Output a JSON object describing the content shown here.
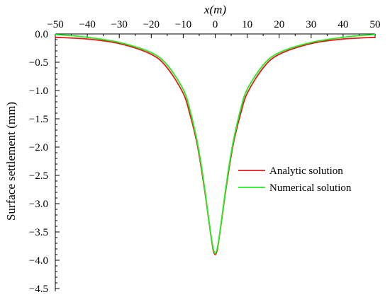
{
  "chart_data": {
    "type": "line",
    "xlabel": "x(m)",
    "ylabel": "Surface settlement (mm)",
    "xlim": [
      -50,
      50
    ],
    "ylim": [
      -4.5,
      0
    ],
    "x_ticks": [
      -50,
      -40,
      -30,
      -20,
      -10,
      0,
      10,
      20,
      30,
      40,
      50
    ],
    "x_tick_labels": [
      "−50",
      "−40",
      "−30",
      "−20",
      "−10",
      "0",
      "10",
      "20",
      "30",
      "40",
      "50"
    ],
    "y_ticks": [
      0,
      -0.5,
      -1,
      -1.5,
      -2,
      -2.5,
      -3,
      -3.5,
      -4,
      -4.5
    ],
    "y_tick_labels": [
      "0.0",
      "−0.5",
      "−1.0",
      "−1.5",
      "−2.0",
      "−2.5",
      "−3.0",
      "−3.5",
      "−4.0",
      "−4.5"
    ],
    "x_axis_position": "top",
    "grid": false,
    "legend_position": "center-right",
    "series": [
      {
        "name": "Analytic  solution",
        "color": "#e31a1c",
        "x": [
          -50,
          -40,
          -30,
          -20,
          -15,
          -10,
          -8,
          -6,
          -5,
          -4,
          -3,
          -2,
          -1,
          -0.5,
          0,
          0.5,
          1,
          2,
          3,
          4,
          5,
          6,
          8,
          10,
          15,
          20,
          30,
          40,
          50
        ],
        "y": [
          -0.06,
          -0.09,
          -0.17,
          -0.36,
          -0.6,
          -1.05,
          -1.4,
          -1.85,
          -2.15,
          -2.5,
          -2.88,
          -3.3,
          -3.7,
          -3.85,
          -3.9,
          -3.85,
          -3.7,
          -3.3,
          -2.88,
          -2.5,
          -2.15,
          -1.85,
          -1.4,
          -1.05,
          -0.6,
          -0.36,
          -0.17,
          -0.09,
          -0.06
        ]
      },
      {
        "name": "Numerical solution",
        "color": "#22ee22",
        "x": [
          -50,
          -45,
          -40,
          -30,
          -20,
          -15,
          -10,
          -8,
          -6,
          -5,
          -4,
          -3,
          -2,
          -1,
          -0.5,
          0,
          0.5,
          1,
          2,
          3,
          4,
          5,
          6,
          8,
          10,
          15,
          20,
          30,
          40,
          45,
          50
        ],
        "y": [
          -0.01,
          -0.03,
          -0.06,
          -0.15,
          -0.33,
          -0.55,
          -0.98,
          -1.32,
          -1.8,
          -2.1,
          -2.45,
          -2.85,
          -3.28,
          -3.68,
          -3.82,
          -3.88,
          -3.82,
          -3.68,
          -3.28,
          -2.85,
          -2.45,
          -2.1,
          -1.8,
          -1.32,
          -0.98,
          -0.55,
          -0.33,
          -0.15,
          -0.06,
          -0.03,
          -0.01
        ]
      }
    ]
  }
}
